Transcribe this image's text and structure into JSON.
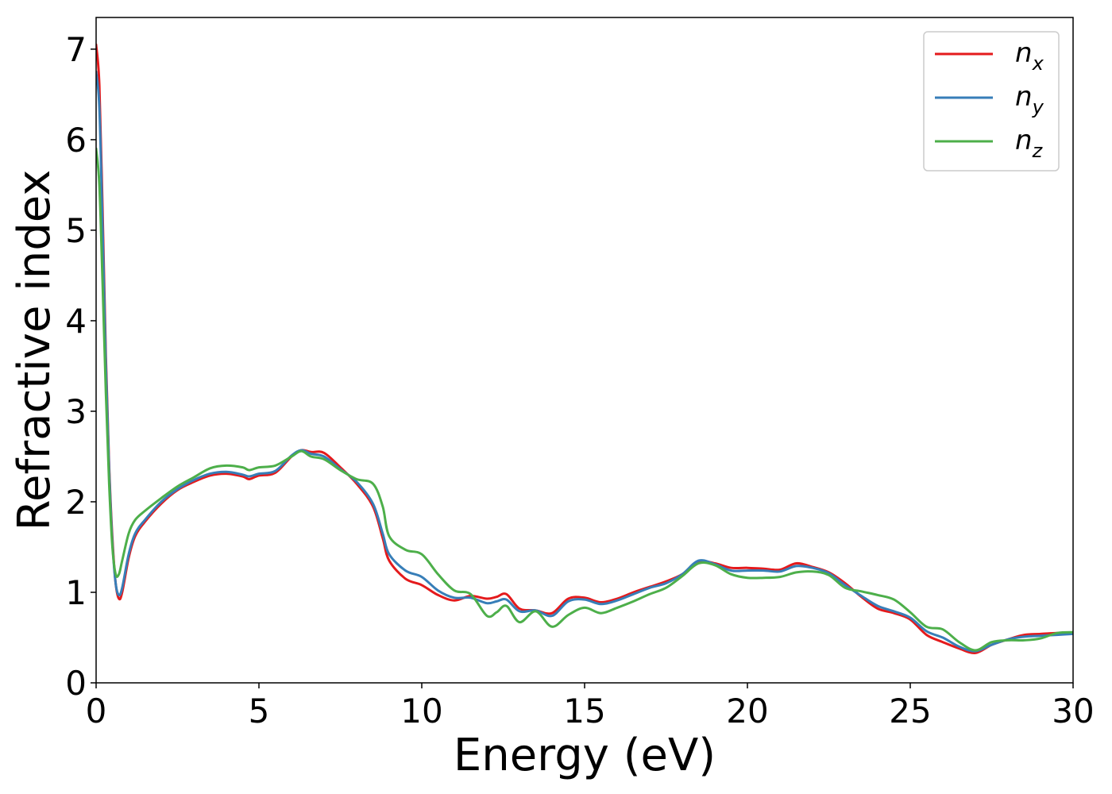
{
  "chart_data": {
    "type": "line",
    "xlabel": "Energy (eV)",
    "ylabel": "Refractive index",
    "xlim": [
      0,
      30
    ],
    "ylim": [
      0,
      7.35
    ],
    "xticks": [
      0,
      5,
      10,
      15,
      20,
      25,
      30
    ],
    "yticks": [
      0,
      1,
      2,
      3,
      4,
      5,
      6,
      7
    ],
    "grid": false,
    "legend_position": "top-right",
    "series": [
      {
        "name": "n",
        "subscript": "x",
        "color": "#e41a1c",
        "points": [
          [
            0,
            7.05
          ],
          [
            0.1,
            6.6
          ],
          [
            0.2,
            5.2
          ],
          [
            0.3,
            3.6
          ],
          [
            0.4,
            2.4
          ],
          [
            0.5,
            1.6
          ],
          [
            0.6,
            1.1
          ],
          [
            0.7,
            0.93
          ],
          [
            0.8,
            1.0
          ],
          [
            1.0,
            1.38
          ],
          [
            1.2,
            1.62
          ],
          [
            1.5,
            1.78
          ],
          [
            2.0,
            1.98
          ],
          [
            2.5,
            2.13
          ],
          [
            3.0,
            2.22
          ],
          [
            3.5,
            2.29
          ],
          [
            4.0,
            2.31
          ],
          [
            4.5,
            2.28
          ],
          [
            4.7,
            2.25
          ],
          [
            5.0,
            2.29
          ],
          [
            5.5,
            2.32
          ],
          [
            6.0,
            2.5
          ],
          [
            6.3,
            2.57
          ],
          [
            6.6,
            2.55
          ],
          [
            7.0,
            2.54
          ],
          [
            7.5,
            2.38
          ],
          [
            8.0,
            2.2
          ],
          [
            8.5,
            1.95
          ],
          [
            8.8,
            1.6
          ],
          [
            9.0,
            1.35
          ],
          [
            9.5,
            1.15
          ],
          [
            10.0,
            1.08
          ],
          [
            10.5,
            0.97
          ],
          [
            11.0,
            0.91
          ],
          [
            11.5,
            0.96
          ],
          [
            12.0,
            0.93
          ],
          [
            12.3,
            0.95
          ],
          [
            12.6,
            0.98
          ],
          [
            13.0,
            0.82
          ],
          [
            13.5,
            0.8
          ],
          [
            14.0,
            0.77
          ],
          [
            14.5,
            0.93
          ],
          [
            15.0,
            0.94
          ],
          [
            15.5,
            0.89
          ],
          [
            16.0,
            0.93
          ],
          [
            16.5,
            1.0
          ],
          [
            17.0,
            1.06
          ],
          [
            17.5,
            1.12
          ],
          [
            18.0,
            1.2
          ],
          [
            18.5,
            1.34
          ],
          [
            19.0,
            1.32
          ],
          [
            19.5,
            1.27
          ],
          [
            20.0,
            1.27
          ],
          [
            20.5,
            1.26
          ],
          [
            21.0,
            1.25
          ],
          [
            21.5,
            1.32
          ],
          [
            22.0,
            1.28
          ],
          [
            22.5,
            1.22
          ],
          [
            23.0,
            1.1
          ],
          [
            23.5,
            0.95
          ],
          [
            24.0,
            0.82
          ],
          [
            24.5,
            0.77
          ],
          [
            25.0,
            0.7
          ],
          [
            25.5,
            0.53
          ],
          [
            26.0,
            0.45
          ],
          [
            26.5,
            0.38
          ],
          [
            27.0,
            0.33
          ],
          [
            27.5,
            0.42
          ],
          [
            28.0,
            0.48
          ],
          [
            28.5,
            0.53
          ],
          [
            29.0,
            0.54
          ],
          [
            29.5,
            0.55
          ],
          [
            30.0,
            0.55
          ]
        ]
      },
      {
        "name": "n",
        "subscript": "y",
        "color": "#377eb8",
        "points": [
          [
            0,
            6.75
          ],
          [
            0.1,
            6.35
          ],
          [
            0.2,
            5.0
          ],
          [
            0.3,
            3.5
          ],
          [
            0.4,
            2.35
          ],
          [
            0.5,
            1.55
          ],
          [
            0.6,
            1.1
          ],
          [
            0.7,
            0.97
          ],
          [
            0.8,
            1.05
          ],
          [
            1.0,
            1.42
          ],
          [
            1.2,
            1.65
          ],
          [
            1.5,
            1.8
          ],
          [
            2.0,
            2.0
          ],
          [
            2.5,
            2.14
          ],
          [
            3.0,
            2.24
          ],
          [
            3.5,
            2.31
          ],
          [
            4.0,
            2.33
          ],
          [
            4.5,
            2.3
          ],
          [
            4.7,
            2.28
          ],
          [
            5.0,
            2.31
          ],
          [
            5.5,
            2.34
          ],
          [
            6.0,
            2.51
          ],
          [
            6.3,
            2.57
          ],
          [
            6.6,
            2.53
          ],
          [
            7.0,
            2.5
          ],
          [
            7.5,
            2.36
          ],
          [
            8.0,
            2.22
          ],
          [
            8.5,
            1.98
          ],
          [
            8.8,
            1.65
          ],
          [
            9.0,
            1.42
          ],
          [
            9.5,
            1.24
          ],
          [
            10.0,
            1.17
          ],
          [
            10.5,
            1.02
          ],
          [
            11.0,
            0.94
          ],
          [
            11.5,
            0.94
          ],
          [
            12.0,
            0.88
          ],
          [
            12.3,
            0.9
          ],
          [
            12.6,
            0.92
          ],
          [
            13.0,
            0.79
          ],
          [
            13.5,
            0.8
          ],
          [
            14.0,
            0.74
          ],
          [
            14.5,
            0.9
          ],
          [
            15.0,
            0.92
          ],
          [
            15.5,
            0.87
          ],
          [
            16.0,
            0.91
          ],
          [
            16.5,
            0.98
          ],
          [
            17.0,
            1.05
          ],
          [
            17.5,
            1.1
          ],
          [
            18.0,
            1.2
          ],
          [
            18.5,
            1.35
          ],
          [
            19.0,
            1.31
          ],
          [
            19.5,
            1.24
          ],
          [
            20.0,
            1.24
          ],
          [
            20.5,
            1.24
          ],
          [
            21.0,
            1.23
          ],
          [
            21.5,
            1.29
          ],
          [
            22.0,
            1.27
          ],
          [
            22.5,
            1.21
          ],
          [
            23.0,
            1.08
          ],
          [
            23.5,
            0.96
          ],
          [
            24.0,
            0.85
          ],
          [
            24.5,
            0.79
          ],
          [
            25.0,
            0.72
          ],
          [
            25.5,
            0.57
          ],
          [
            26.0,
            0.5
          ],
          [
            26.5,
            0.4
          ],
          [
            27.0,
            0.35
          ],
          [
            27.5,
            0.42
          ],
          [
            28.0,
            0.48
          ],
          [
            28.5,
            0.51
          ],
          [
            29.0,
            0.52
          ],
          [
            29.5,
            0.53
          ],
          [
            30.0,
            0.54
          ]
        ]
      },
      {
        "name": "n",
        "subscript": "z",
        "color": "#4daf4a",
        "points": [
          [
            0,
            5.9
          ],
          [
            0.1,
            5.5
          ],
          [
            0.2,
            4.4
          ],
          [
            0.3,
            3.2
          ],
          [
            0.4,
            2.2
          ],
          [
            0.5,
            1.5
          ],
          [
            0.6,
            1.2
          ],
          [
            0.7,
            1.2
          ],
          [
            0.8,
            1.35
          ],
          [
            1.0,
            1.65
          ],
          [
            1.2,
            1.8
          ],
          [
            1.5,
            1.9
          ],
          [
            2.0,
            2.04
          ],
          [
            2.5,
            2.17
          ],
          [
            3.0,
            2.27
          ],
          [
            3.5,
            2.37
          ],
          [
            4.0,
            2.4
          ],
          [
            4.5,
            2.38
          ],
          [
            4.7,
            2.35
          ],
          [
            5.0,
            2.38
          ],
          [
            5.5,
            2.4
          ],
          [
            6.0,
            2.5
          ],
          [
            6.3,
            2.56
          ],
          [
            6.6,
            2.5
          ],
          [
            7.0,
            2.47
          ],
          [
            7.5,
            2.35
          ],
          [
            8.0,
            2.25
          ],
          [
            8.5,
            2.2
          ],
          [
            8.8,
            1.95
          ],
          [
            9.0,
            1.62
          ],
          [
            9.5,
            1.47
          ],
          [
            10.0,
            1.42
          ],
          [
            10.5,
            1.2
          ],
          [
            11.0,
            1.02
          ],
          [
            11.5,
            0.98
          ],
          [
            12.0,
            0.74
          ],
          [
            12.3,
            0.78
          ],
          [
            12.6,
            0.85
          ],
          [
            13.0,
            0.67
          ],
          [
            13.5,
            0.79
          ],
          [
            14.0,
            0.62
          ],
          [
            14.5,
            0.75
          ],
          [
            15.0,
            0.83
          ],
          [
            15.5,
            0.77
          ],
          [
            16.0,
            0.83
          ],
          [
            16.5,
            0.9
          ],
          [
            17.0,
            0.98
          ],
          [
            17.5,
            1.05
          ],
          [
            18.0,
            1.18
          ],
          [
            18.5,
            1.32
          ],
          [
            19.0,
            1.3
          ],
          [
            19.5,
            1.2
          ],
          [
            20.0,
            1.16
          ],
          [
            20.5,
            1.16
          ],
          [
            21.0,
            1.17
          ],
          [
            21.5,
            1.22
          ],
          [
            22.0,
            1.23
          ],
          [
            22.5,
            1.19
          ],
          [
            23.0,
            1.05
          ],
          [
            23.5,
            1.01
          ],
          [
            24.0,
            0.97
          ],
          [
            24.5,
            0.92
          ],
          [
            25.0,
            0.78
          ],
          [
            25.5,
            0.62
          ],
          [
            26.0,
            0.59
          ],
          [
            26.5,
            0.45
          ],
          [
            27.0,
            0.36
          ],
          [
            27.5,
            0.45
          ],
          [
            28.0,
            0.47
          ],
          [
            28.5,
            0.47
          ],
          [
            29.0,
            0.49
          ],
          [
            29.5,
            0.55
          ],
          [
            30.0,
            0.56
          ]
        ]
      }
    ]
  }
}
